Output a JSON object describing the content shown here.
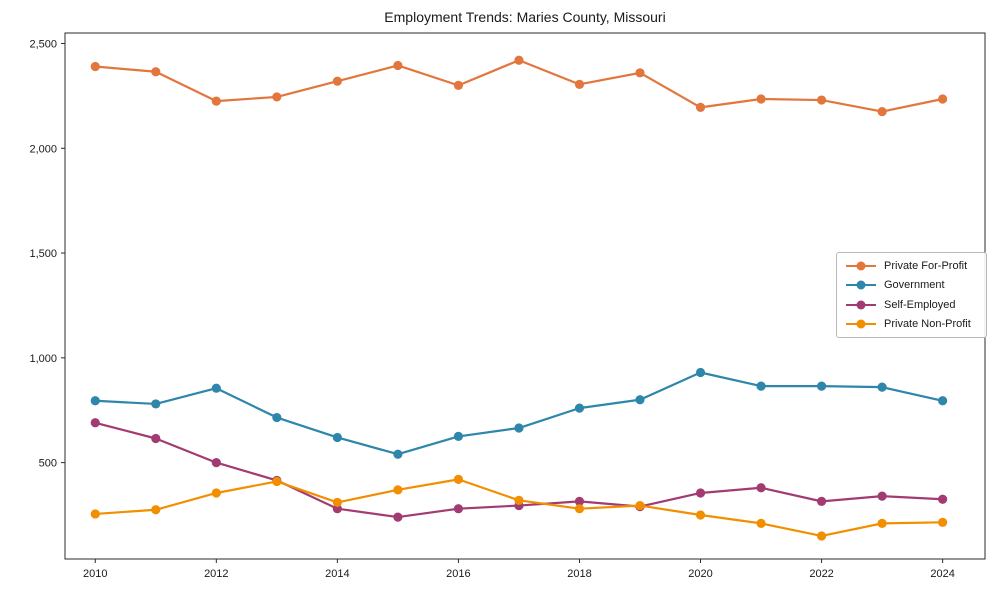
{
  "chart_data": {
    "type": "line",
    "title": "Employment Trends: Maries County, Missouri",
    "xlabel": "",
    "ylabel": "",
    "x": [
      2010,
      2011,
      2012,
      2013,
      2014,
      2015,
      2016,
      2017,
      2018,
      2019,
      2020,
      2021,
      2022,
      2023,
      2024
    ],
    "xlim": [
      2009.5,
      2024.7
    ],
    "ylim": [
      40,
      2550
    ],
    "grid": false,
    "xtick_labels": [
      "2010",
      "2012",
      "2014",
      "2016",
      "2018",
      "2020",
      "2022",
      "2024"
    ],
    "xtick_values": [
      2010,
      2012,
      2014,
      2016,
      2018,
      2020,
      2022,
      2024
    ],
    "ytick_labels": [
      "500",
      "1,000",
      "1,500",
      "2,000",
      "2,500"
    ],
    "ytick_values": [
      500,
      1000,
      1500,
      2000,
      2500
    ],
    "legend_position": "center-right",
    "series": [
      {
        "name": "Private For-Profit",
        "color": "#E2763C",
        "values": [
          2390,
          2365,
          2225,
          2245,
          2320,
          2395,
          2300,
          2420,
          2305,
          2360,
          2195,
          2235,
          2230,
          2175,
          2235
        ]
      },
      {
        "name": "Government",
        "color": "#2E86AB",
        "values": [
          795,
          780,
          855,
          715,
          620,
          540,
          625,
          665,
          760,
          800,
          930,
          865,
          865,
          860,
          795
        ]
      },
      {
        "name": "Self-Employed",
        "color": "#A23B72",
        "values": [
          690,
          615,
          500,
          415,
          280,
          240,
          280,
          295,
          315,
          290,
          355,
          380,
          315,
          340,
          325
        ]
      },
      {
        "name": "Private Non-Profit",
        "color": "#F18F01",
        "values": [
          255,
          275,
          355,
          410,
          310,
          370,
          420,
          320,
          280,
          295,
          250,
          210,
          150,
          210,
          215
        ]
      }
    ]
  }
}
